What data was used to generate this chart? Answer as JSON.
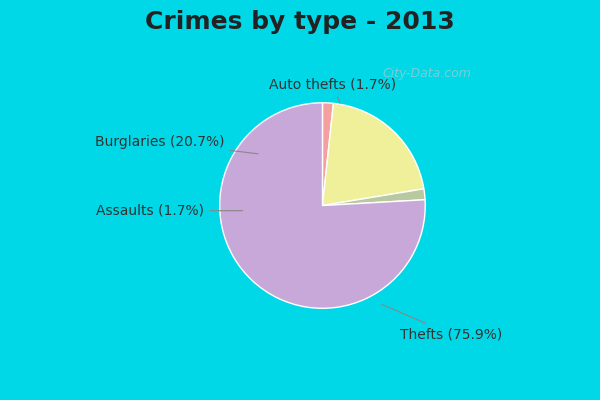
{
  "title": "Crimes by type - 2013",
  "labels": [
    "Auto thefts",
    "Burglaries",
    "Assaults",
    "Thefts"
  ],
  "percentages": [
    1.7,
    20.7,
    1.7,
    75.9
  ],
  "colors": [
    "#f4a0a0",
    "#f0f09a",
    "#b8c8a0",
    "#c8a8d8"
  ],
  "background_top": "#00d8e8",
  "background_main": "#c8e8d0",
  "startangle": 90,
  "title_fontsize": 18,
  "label_fontsize": 10,
  "watermark": "City-Data.com"
}
